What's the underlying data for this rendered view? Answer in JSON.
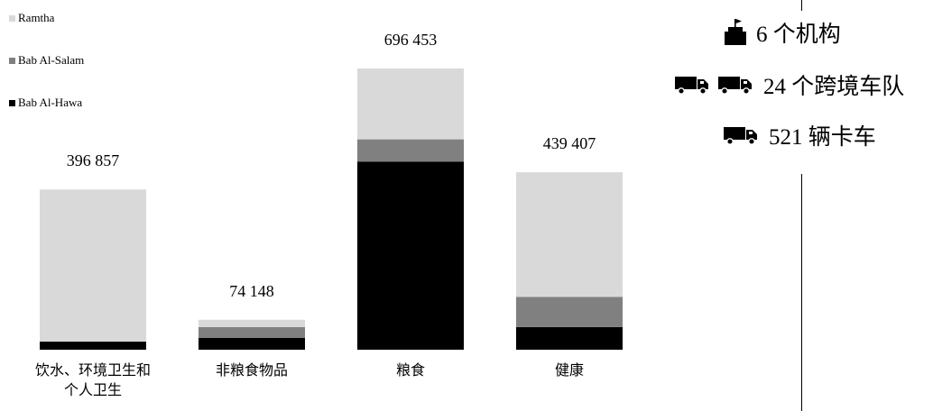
{
  "chart_data": {
    "type": "bar",
    "stacked": true,
    "categories": [
      "饮水、环境卫生和\n个人卫生",
      "非粮食物品",
      "粮食",
      "健康"
    ],
    "series": [
      {
        "name": "Bab Al-Hawa",
        "color": "#000000",
        "values": [
          20000,
          29000,
          466000,
          56000
        ]
      },
      {
        "name": "Bab Al-Salam",
        "color": "#808080",
        "values": [
          0,
          27000,
          55000,
          75000
        ]
      },
      {
        "name": "Ramtha",
        "color": "#d9d9d9",
        "values": [
          376857,
          18148,
          175453,
          308407
        ]
      }
    ],
    "totals": [
      396857,
      74148,
      696453,
      439407
    ],
    "total_labels": [
      "396 857",
      "74 148",
      "696 453",
      "439 407"
    ],
    "legend_order": [
      "Ramtha",
      "Bab Al-Salam",
      "Bab Al-Hawa"
    ],
    "legend_position": "top-left",
    "ylim": [
      0,
      696453
    ],
    "grid": false
  },
  "legend": {
    "ramtha": "Ramtha",
    "bab_al_salam": "Bab Al-Salam",
    "bab_al_hawa": "Bab Al-Hawa"
  },
  "stats": {
    "agencies": "6 个机构",
    "convoys": "24 个跨境车队",
    "trucks": "521 辆卡车"
  },
  "colors": {
    "ramtha": "#d9d9d9",
    "bab_al_salam": "#808080",
    "bab_al_hawa": "#000000"
  },
  "icons": {
    "agencies": "building-with-flag-icon",
    "convoys": "truck-icon",
    "trucks": "truck-icon"
  }
}
